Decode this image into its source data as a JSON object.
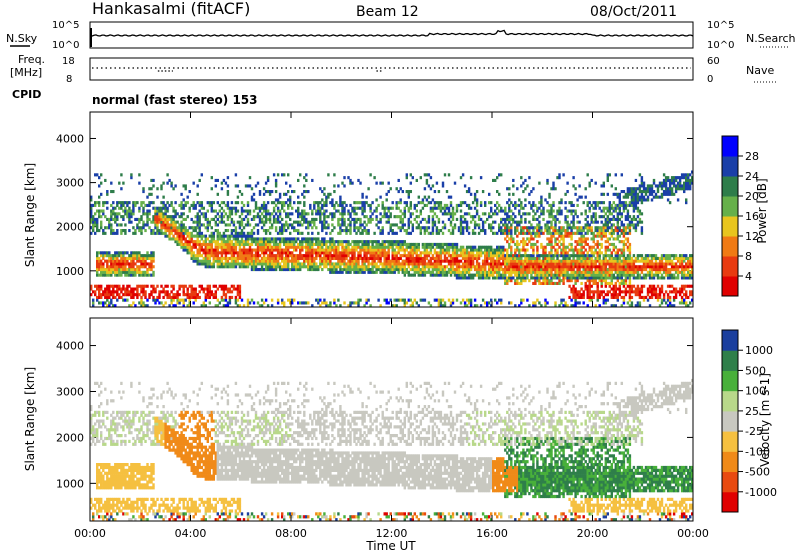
{
  "header": {
    "station": "Hankasalmi (fitACF)",
    "beam": "Beam 12",
    "date": "08/Oct/2011"
  },
  "param_panels": {
    "nsky_label": "N.Sky",
    "nsky_ticks": [
      "10^5",
      "10^0"
    ],
    "nsearch_label": "N.Search",
    "nsearch_ticks": [
      "10^5",
      "10^0"
    ],
    "freq_label_1": "Freq.",
    "freq_label_2": "[MHz]",
    "freq_ticks": [
      "18",
      "8"
    ],
    "nave_label": "Nave",
    "nave_ticks": [
      "60",
      "0"
    ],
    "cpid_label": "CPID",
    "cpid_value": "normal (fast stereo) 153"
  },
  "chart_data": [
    {
      "type": "heatmap",
      "title": "",
      "xlabel": "",
      "ylabel": "Slant Range [km]",
      "xlim": [
        0,
        24
      ],
      "ylim": [
        180,
        4600
      ],
      "yticks": [
        1000,
        2000,
        3000,
        4000
      ],
      "colorbar": {
        "label": "Power [dB]",
        "ticks": [
          "4",
          "8",
          "12",
          "16",
          "20",
          "24",
          "28"
        ],
        "colors": [
          "#0000ff",
          "#1a3fa8",
          "#2e7d4a",
          "#66b04a",
          "#e8c51e",
          "#f07a14",
          "#e83a10",
          "#e00000"
        ]
      }
    },
    {
      "type": "heatmap",
      "title": "",
      "xlabel": "Time UT",
      "ylabel": "Slant Range [km]",
      "xlim": [
        0,
        24
      ],
      "ylim": [
        180,
        4600
      ],
      "xticks": [
        "00:00",
        "04:00",
        "08:00",
        "12:00",
        "16:00",
        "20:00",
        "00:00"
      ],
      "yticks": [
        1000,
        2000,
        3000,
        4000
      ],
      "colorbar": {
        "label": "Velocity [m s-1]",
        "ticks": [
          "1000",
          "500",
          "100",
          "25",
          "-25",
          "-100",
          "-500",
          "-1000"
        ],
        "colors": [
          "#1b3f9e",
          "#2f7f4a",
          "#48b03a",
          "#b8d88a",
          "#c8c8c0",
          "#f5c040",
          "#f08a18",
          "#e84a10",
          "#e00000"
        ]
      }
    }
  ]
}
